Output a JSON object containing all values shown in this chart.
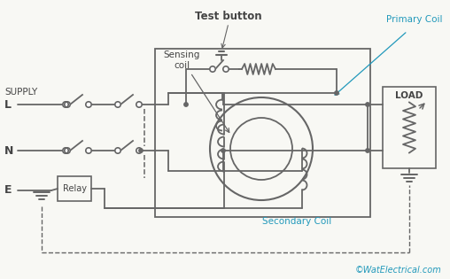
{
  "background_color": "#f8f8f4",
  "line_color": "#666666",
  "text_color": "#444444",
  "cyan_color": "#2299bb",
  "label_supply": "SUPPLY",
  "label_L": "L",
  "label_N": "N",
  "label_E": "E",
  "label_relay": "Relay",
  "label_load": "LOAD",
  "label_test": "Test button",
  "label_sensing": "Sensing\ncoil",
  "label_primary": "Primary Coil",
  "label_secondary": "Secondary Coil",
  "label_copyright": "©WatElectrical.com",
  "figsize": [
    5.08,
    3.15
  ],
  "dpi": 100
}
